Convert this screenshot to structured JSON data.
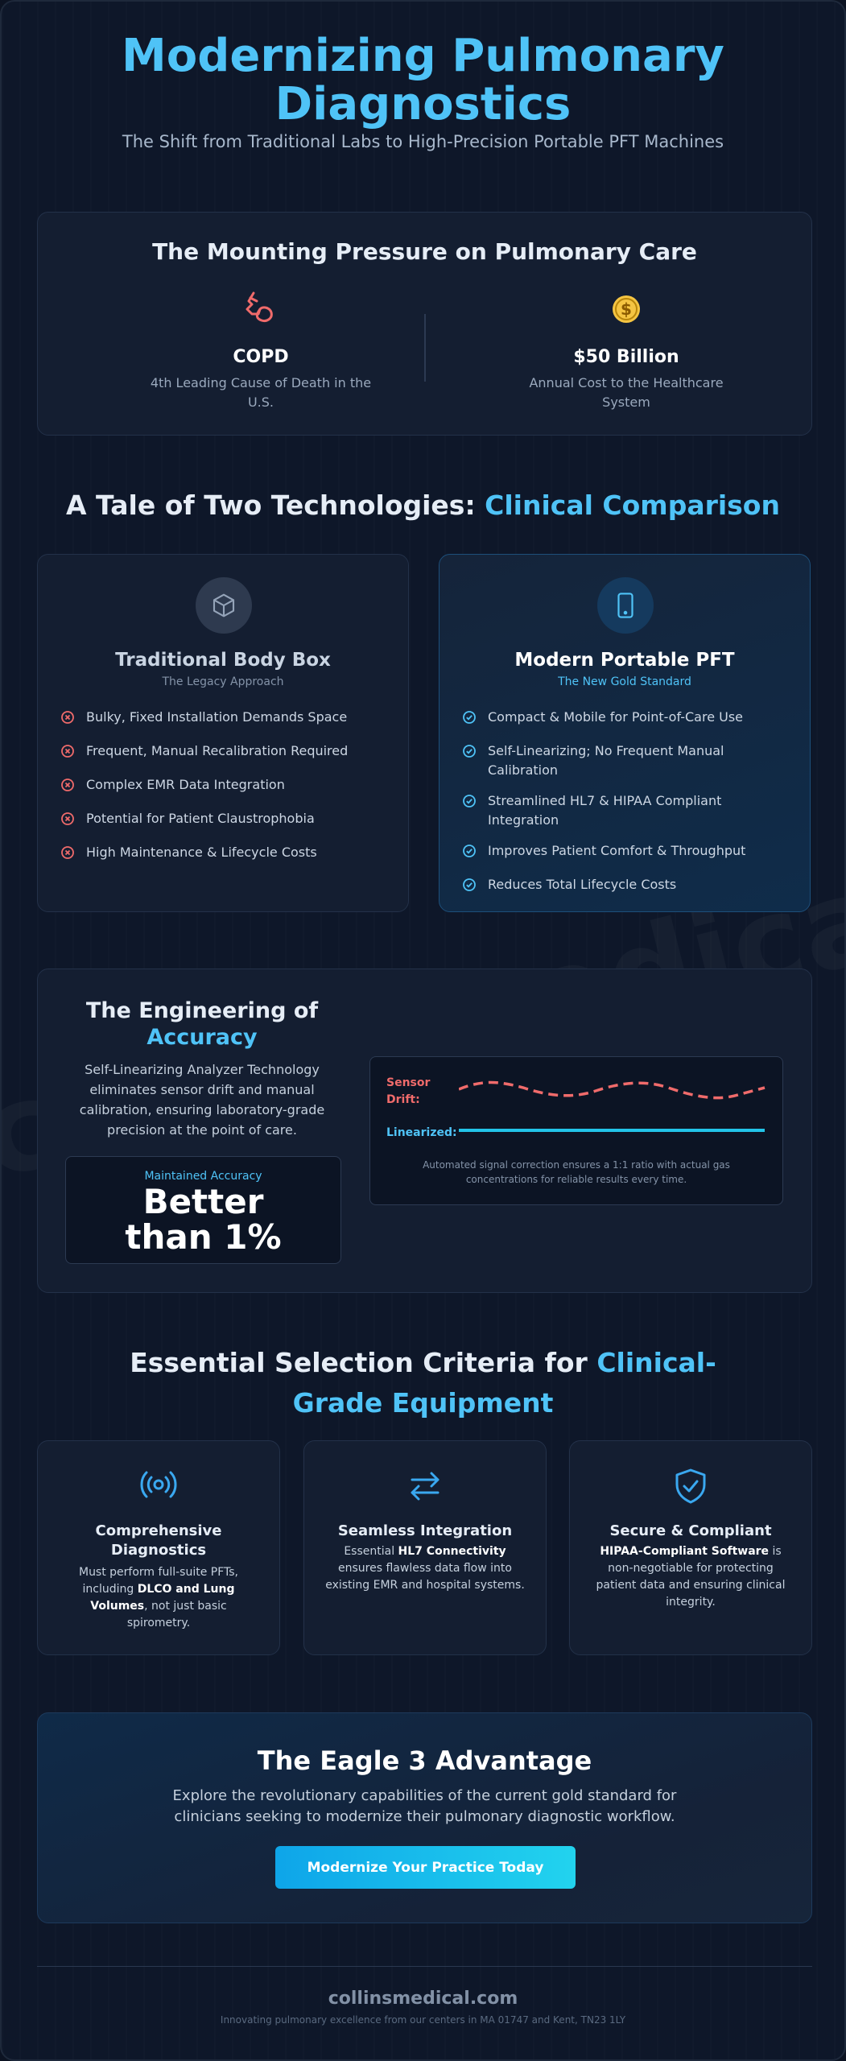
{
  "header": {
    "title": "Modernizing Pulmonary Diagnostics",
    "subtitle": "The Shift from Traditional Labs to High-Precision Portable PFT Machines"
  },
  "watermark": "collinsmedical.com",
  "pressure": {
    "title": "The Mounting Pressure on Pulmonary Care",
    "stats": [
      {
        "icon": "lungs-icon",
        "value": "COPD",
        "caption": "4th Leading Cause of Death in the U.S."
      },
      {
        "icon": "dollar-coin-icon",
        "value": "$50 Billion",
        "caption": "Annual Cost to the Healthcare System"
      }
    ]
  },
  "comparison": {
    "title_main": "A Tale of Two Technologies: ",
    "title_accent": "Clinical Comparison",
    "traditional": {
      "icon": "cube-icon",
      "title": "Traditional Body Box",
      "tag": "The Legacy Approach",
      "items": [
        "Bulky, Fixed Installation Demands Space",
        "Frequent, Manual Recalibration Required",
        "Complex EMR Data Integration",
        "Potential for Patient Claustrophobia",
        "High Maintenance & Lifecycle Costs"
      ]
    },
    "modern": {
      "icon": "tablet-icon",
      "title": "Modern Portable PFT",
      "tag": "The New Gold Standard",
      "items": [
        "Compact & Mobile for Point-of-Care Use",
        "Self-Linearizing; No Frequent Manual Calibration",
        "Streamlined HL7 & HIPAA Compliant Integration",
        "Improves Patient Comfort & Throughput",
        "Reduces Total Lifecycle Costs"
      ]
    }
  },
  "accuracy": {
    "title_main": "The Engineering of",
    "title_accent": "Accuracy",
    "description": "Self-Linearizing Analyzer Technology eliminates sensor drift and manual calibration, ensuring laboratory-grade precision at the point of care.",
    "box_label": "Maintained Accuracy",
    "box_value": "Better than 1%",
    "drift_label_1": "Sensor",
    "drift_label_2": "Drift:",
    "linear_label": "Linearized:",
    "note": "Automated signal correction ensures a 1:1 ratio with actual gas concentrations for reliable results every time.",
    "colors": {
      "drift": "#f06b6b",
      "linear": "#22c4e8"
    }
  },
  "criteria": {
    "title_main": "Essential Selection Criteria for ",
    "title_accent": "Clinical-Grade Equipment",
    "cards": [
      {
        "icon": "broadcast-icon",
        "title": "Comprehensive Diagnostics",
        "pre": "Must perform full-suite PFTs, including ",
        "bold": "DLCO and Lung Volumes",
        "post": ", not just basic spirometry."
      },
      {
        "icon": "arrows-exchange-icon",
        "title": "Seamless Integration",
        "pre": "Essential ",
        "bold": "HL7 Connectivity",
        "post": " ensures flawless data flow into existing EMR and hospital systems."
      },
      {
        "icon": "shield-check-icon",
        "title": "Secure & Compliant",
        "pre": "",
        "bold": "HIPAA-Compliant Software",
        "post": " is non-negotiable for protecting patient data and ensuring clinical integrity."
      }
    ]
  },
  "cta": {
    "title": "The Eagle 3 Advantage",
    "text": "Explore the revolutionary capabilities of the current gold standard for clinicians seeking to modernize their pulmonary diagnostic workflow.",
    "button": "Modernize Your Practice Today"
  },
  "footer": {
    "brand": "collinsmedical.com",
    "note": "Innovating pulmonary excellence from our centers in MA 01747 and Kent, TN23 1LY"
  }
}
